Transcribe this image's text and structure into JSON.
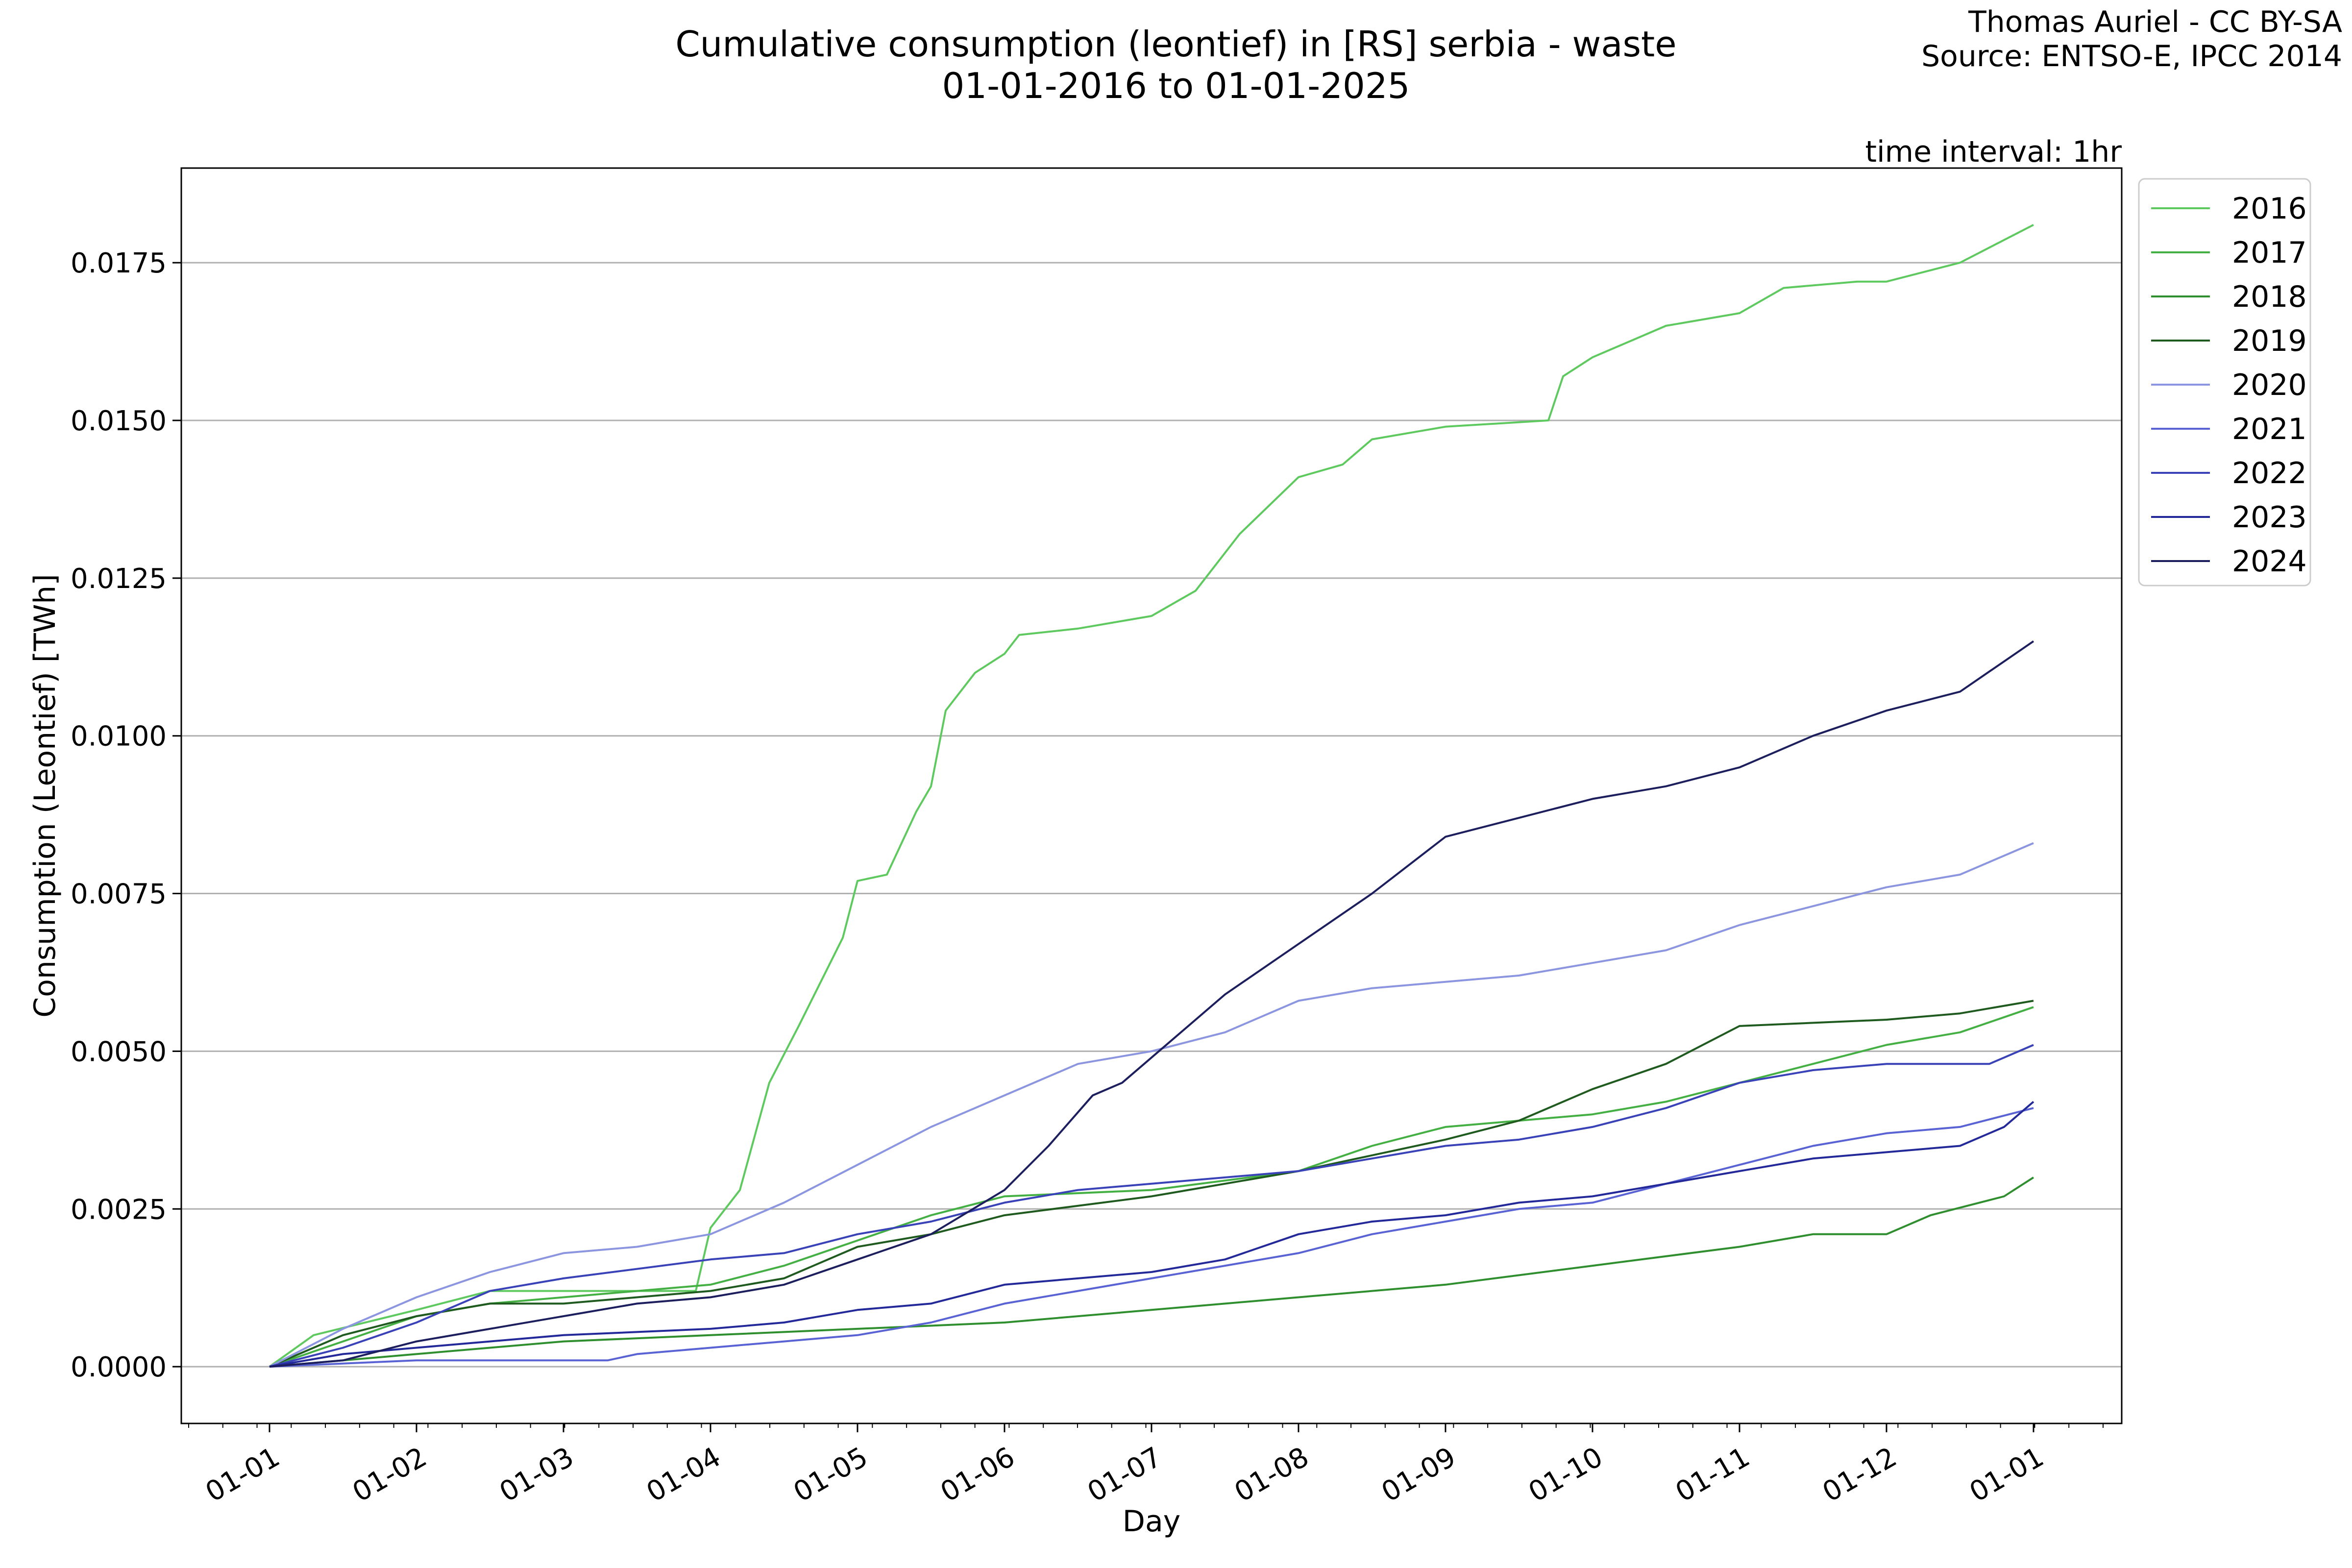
{
  "header": {
    "title_line1": "Cumulative consumption (leontief) in [RS] serbia - waste",
    "title_line2": "01-01-2016 to 01-01-2025",
    "credit_line1": "Thomas Auriel - CC BY-SA",
    "credit_line2": "Source: ENTSO-E, IPCC 2014",
    "interval": "time interval: 1hr"
  },
  "chart_data": {
    "type": "line",
    "xlabel": "Day",
    "ylabel": "Consumption (Leontief) [TWh]",
    "xlim": [
      -0.6,
      12.6
    ],
    "ylim": [
      -0.0009,
      0.019
    ],
    "xticks": [
      {
        "v": 0,
        "label": "01-01"
      },
      {
        "v": 1,
        "label": "01-02"
      },
      {
        "v": 2,
        "label": "01-03"
      },
      {
        "v": 3,
        "label": "01-04"
      },
      {
        "v": 4,
        "label": "01-05"
      },
      {
        "v": 5,
        "label": "01-06"
      },
      {
        "v": 6,
        "label": "01-07"
      },
      {
        "v": 7,
        "label": "01-08"
      },
      {
        "v": 8,
        "label": "01-09"
      },
      {
        "v": 9,
        "label": "01-10"
      },
      {
        "v": 10,
        "label": "01-11"
      },
      {
        "v": 11,
        "label": "01-12"
      },
      {
        "v": 12,
        "label": "01-01"
      }
    ],
    "yticks": [
      {
        "v": 0.0,
        "label": "0.0000"
      },
      {
        "v": 0.0025,
        "label": "0.0025"
      },
      {
        "v": 0.005,
        "label": "0.0050"
      },
      {
        "v": 0.0075,
        "label": "0.0075"
      },
      {
        "v": 0.01,
        "label": "0.0100"
      },
      {
        "v": 0.0125,
        "label": "0.0125"
      },
      {
        "v": 0.015,
        "label": "0.0150"
      },
      {
        "v": 0.0175,
        "label": "0.0175"
      }
    ],
    "grid": "horizontal",
    "legend_position": "outside-right",
    "series": [
      {
        "name": "2016",
        "color": "#5ec95e",
        "points": [
          [
            0,
            0
          ],
          [
            0.3,
            0.0005
          ],
          [
            1,
            0.0009
          ],
          [
            1.5,
            0.0012
          ],
          [
            2,
            0.0012
          ],
          [
            2.9,
            0.0012
          ],
          [
            3,
            0.0022
          ],
          [
            3.2,
            0.0028
          ],
          [
            3.4,
            0.0045
          ],
          [
            3.6,
            0.0054
          ],
          [
            3.9,
            0.0068
          ],
          [
            4,
            0.0077
          ],
          [
            4.2,
            0.0078
          ],
          [
            4.4,
            0.0088
          ],
          [
            4.5,
            0.0092
          ],
          [
            4.6,
            0.0104
          ],
          [
            4.8,
            0.011
          ],
          [
            5,
            0.0113
          ],
          [
            5.1,
            0.0116
          ],
          [
            5.5,
            0.0117
          ],
          [
            6,
            0.0119
          ],
          [
            6.3,
            0.0123
          ],
          [
            6.6,
            0.0132
          ],
          [
            7,
            0.0141
          ],
          [
            7.3,
            0.0143
          ],
          [
            7.5,
            0.0147
          ],
          [
            8,
            0.0149
          ],
          [
            8.7,
            0.015
          ],
          [
            8.8,
            0.0157
          ],
          [
            9,
            0.016
          ],
          [
            9.5,
            0.0165
          ],
          [
            10,
            0.0167
          ],
          [
            10.3,
            0.0171
          ],
          [
            10.8,
            0.0172
          ],
          [
            11,
            0.0172
          ],
          [
            11.5,
            0.0175
          ],
          [
            12,
            0.0181
          ]
        ]
      },
      {
        "name": "2017",
        "color": "#44b044",
        "points": [
          [
            0,
            0
          ],
          [
            0.5,
            0.0004
          ],
          [
            1,
            0.0008
          ],
          [
            1.5,
            0.001
          ],
          [
            2,
            0.0011
          ],
          [
            3,
            0.0013
          ],
          [
            3.5,
            0.0016
          ],
          [
            4,
            0.002
          ],
          [
            4.5,
            0.0024
          ],
          [
            5,
            0.0027
          ],
          [
            6,
            0.0028
          ],
          [
            7,
            0.0031
          ],
          [
            7.5,
            0.0035
          ],
          [
            8,
            0.0038
          ],
          [
            9,
            0.004
          ],
          [
            9.5,
            0.0042
          ],
          [
            10,
            0.0045
          ],
          [
            10.5,
            0.0048
          ],
          [
            11,
            0.0051
          ],
          [
            11.5,
            0.0053
          ],
          [
            12,
            0.0057
          ]
        ]
      },
      {
        "name": "2018",
        "color": "#2f8f2f",
        "points": [
          [
            0,
            0
          ],
          [
            0.5,
            0.0001
          ],
          [
            1,
            0.0002
          ],
          [
            1.5,
            0.0003
          ],
          [
            2,
            0.0004
          ],
          [
            3,
            0.0005
          ],
          [
            4,
            0.0006
          ],
          [
            5,
            0.0007
          ],
          [
            6,
            0.0009
          ],
          [
            7,
            0.0011
          ],
          [
            8,
            0.0013
          ],
          [
            9,
            0.0016
          ],
          [
            10,
            0.0019
          ],
          [
            10.5,
            0.0021
          ],
          [
            11,
            0.0021
          ],
          [
            11.3,
            0.0024
          ],
          [
            11.8,
            0.0027
          ],
          [
            12,
            0.003
          ]
        ]
      },
      {
        "name": "2019",
        "color": "#1f5a1f",
        "points": [
          [
            0,
            0
          ],
          [
            0.3,
            0.0003
          ],
          [
            0.5,
            0.0005
          ],
          [
            1,
            0.0008
          ],
          [
            1.5,
            0.001
          ],
          [
            2,
            0.001
          ],
          [
            2.5,
            0.0011
          ],
          [
            3,
            0.0012
          ],
          [
            3.5,
            0.0014
          ],
          [
            4,
            0.0019
          ],
          [
            4.5,
            0.0021
          ],
          [
            5,
            0.0024
          ],
          [
            6,
            0.0027
          ],
          [
            6.5,
            0.0029
          ],
          [
            7,
            0.0031
          ],
          [
            8,
            0.0036
          ],
          [
            8.5,
            0.0039
          ],
          [
            9,
            0.0044
          ],
          [
            9.5,
            0.0048
          ],
          [
            10,
            0.0054
          ],
          [
            11,
            0.0055
          ],
          [
            11.5,
            0.0056
          ],
          [
            12,
            0.0058
          ]
        ]
      },
      {
        "name": "2020",
        "color": "#8c95e0",
        "points": [
          [
            0,
            0
          ],
          [
            0.5,
            0.0006
          ],
          [
            1,
            0.0011
          ],
          [
            1.5,
            0.0015
          ],
          [
            2,
            0.0018
          ],
          [
            2.5,
            0.0019
          ],
          [
            3,
            0.0021
          ],
          [
            3.5,
            0.0026
          ],
          [
            4,
            0.0032
          ],
          [
            4.5,
            0.0038
          ],
          [
            5,
            0.0043
          ],
          [
            5.5,
            0.0048
          ],
          [
            6,
            0.005
          ],
          [
            6.5,
            0.0053
          ],
          [
            7,
            0.0058
          ],
          [
            7.5,
            0.006
          ],
          [
            8,
            0.0061
          ],
          [
            8.5,
            0.0062
          ],
          [
            9,
            0.0064
          ],
          [
            9.5,
            0.0066
          ],
          [
            10,
            0.007
          ],
          [
            10.5,
            0.0073
          ],
          [
            11,
            0.0076
          ],
          [
            11.5,
            0.0078
          ],
          [
            12,
            0.0083
          ]
        ]
      },
      {
        "name": "2021",
        "color": "#5a63d4",
        "points": [
          [
            0,
            0
          ],
          [
            1,
            0.0001
          ],
          [
            2,
            0.0001
          ],
          [
            2.3,
            0.0001
          ],
          [
            2.5,
            0.0002
          ],
          [
            3,
            0.0003
          ],
          [
            3.5,
            0.0004
          ],
          [
            4,
            0.0005
          ],
          [
            4.5,
            0.0007
          ],
          [
            5,
            0.001
          ],
          [
            5.5,
            0.0012
          ],
          [
            6,
            0.0014
          ],
          [
            6.5,
            0.0016
          ],
          [
            7,
            0.0018
          ],
          [
            7.5,
            0.0021
          ],
          [
            8,
            0.0023
          ],
          [
            8.5,
            0.0025
          ],
          [
            9,
            0.0026
          ],
          [
            9.5,
            0.0029
          ],
          [
            10,
            0.0032
          ],
          [
            10.5,
            0.0035
          ],
          [
            11,
            0.0037
          ],
          [
            11.5,
            0.0038
          ],
          [
            12,
            0.0041
          ]
        ]
      },
      {
        "name": "2022",
        "color": "#3a42b8",
        "points": [
          [
            0,
            0
          ],
          [
            0.5,
            0.0003
          ],
          [
            1,
            0.0007
          ],
          [
            1.5,
            0.0012
          ],
          [
            2,
            0.0014
          ],
          [
            3,
            0.0017
          ],
          [
            3.5,
            0.0018
          ],
          [
            4,
            0.0021
          ],
          [
            4.5,
            0.0023
          ],
          [
            5,
            0.0026
          ],
          [
            5.5,
            0.0028
          ],
          [
            6,
            0.0029
          ],
          [
            7,
            0.0031
          ],
          [
            7.5,
            0.0033
          ],
          [
            8,
            0.0035
          ],
          [
            8.5,
            0.0036
          ],
          [
            9,
            0.0038
          ],
          [
            9.5,
            0.0041
          ],
          [
            10,
            0.0045
          ],
          [
            10.5,
            0.0047
          ],
          [
            11,
            0.0048
          ],
          [
            11.7,
            0.0048
          ],
          [
            12,
            0.0051
          ]
        ]
      },
      {
        "name": "2023",
        "color": "#24299a",
        "points": [
          [
            0,
            0
          ],
          [
            0.5,
            0.0002
          ],
          [
            1,
            0.0003
          ],
          [
            1.5,
            0.0004
          ],
          [
            2,
            0.0005
          ],
          [
            3,
            0.0006
          ],
          [
            3.5,
            0.0007
          ],
          [
            4,
            0.0009
          ],
          [
            4.5,
            0.001
          ],
          [
            5,
            0.0013
          ],
          [
            5.5,
            0.0014
          ],
          [
            6,
            0.0015
          ],
          [
            6.5,
            0.0017
          ],
          [
            7,
            0.0021
          ],
          [
            7.5,
            0.0023
          ],
          [
            8,
            0.0024
          ],
          [
            8.5,
            0.0026
          ],
          [
            9,
            0.0027
          ],
          [
            9.5,
            0.0029
          ],
          [
            10,
            0.0031
          ],
          [
            10.5,
            0.0033
          ],
          [
            11,
            0.0034
          ],
          [
            11.5,
            0.0035
          ],
          [
            11.8,
            0.0038
          ],
          [
            12,
            0.0042
          ]
        ]
      },
      {
        "name": "2024",
        "color": "#1c1e5e",
        "points": [
          [
            0,
            0
          ],
          [
            0.5,
            0.0001
          ],
          [
            1,
            0.0004
          ],
          [
            1.5,
            0.0006
          ],
          [
            2,
            0.0008
          ],
          [
            2.5,
            0.001
          ],
          [
            3,
            0.0011
          ],
          [
            3.5,
            0.0013
          ],
          [
            4,
            0.0017
          ],
          [
            4.5,
            0.0021
          ],
          [
            5,
            0.0028
          ],
          [
            5.3,
            0.0035
          ],
          [
            5.6,
            0.0043
          ],
          [
            5.8,
            0.0045
          ],
          [
            6,
            0.0049
          ],
          [
            6.5,
            0.0059
          ],
          [
            7,
            0.0067
          ],
          [
            7.5,
            0.0075
          ],
          [
            8,
            0.0084
          ],
          [
            8.5,
            0.0087
          ],
          [
            9,
            0.009
          ],
          [
            9.5,
            0.0092
          ],
          [
            10,
            0.0095
          ],
          [
            10.5,
            0.01
          ],
          [
            11,
            0.0104
          ],
          [
            11.5,
            0.0107
          ],
          [
            12,
            0.0115
          ]
        ]
      }
    ]
  }
}
